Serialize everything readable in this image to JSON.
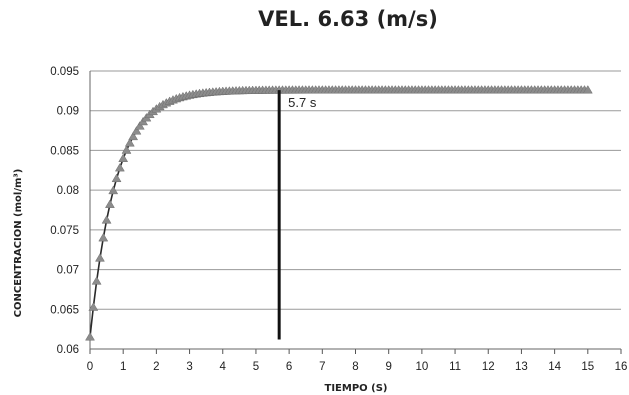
{
  "chart_data": {
    "type": "line",
    "title": "VEL. 6.63 (m/s)",
    "xlabel": "TIEMPO (S)",
    "ylabel": "CONCENTRACION (mol/m³)",
    "xlim": [
      0,
      16
    ],
    "ylim": [
      0.06,
      0.095
    ],
    "xticks": [
      "0",
      "1",
      "2",
      "3",
      "4",
      "5",
      "6",
      "7",
      "8",
      "9",
      "10",
      "11",
      "12",
      "13",
      "14",
      "15",
      "16"
    ],
    "yticks": [
      "0.06",
      "0.065",
      "0.07",
      "0.075",
      "0.08",
      "0.085",
      "0.09",
      "0.095"
    ],
    "grid": true,
    "legend": "none",
    "series": [
      {
        "marker": "triangle",
        "color": "#8c8c8c",
        "line_color": "#2a2a2a",
        "model": {
          "form": "exponential-approach",
          "y_start": 0.0615,
          "y_final": 0.0926,
          "tau_s": 0.78,
          "x_start": 0,
          "x_end": 15,
          "step": 0.1
        }
      }
    ],
    "annotations": [
      {
        "type": "vline",
        "x": 5.7,
        "y_from": 0.0612,
        "y_to": 0.0926,
        "label": "5.7 s"
      }
    ]
  }
}
